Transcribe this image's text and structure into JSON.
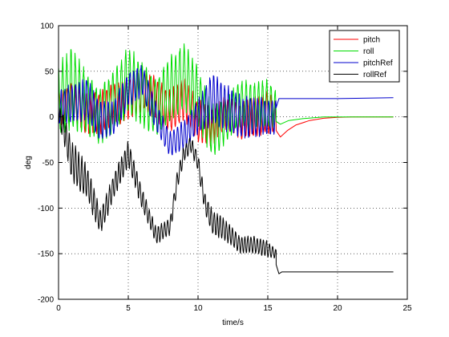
{
  "chart_data": {
    "type": "line",
    "xlabel": "time/s",
    "ylabel": "deg",
    "xlim": [
      0,
      25
    ],
    "ylim": [
      -200,
      100
    ],
    "xticks": [
      0,
      5,
      10,
      15,
      20,
      25
    ],
    "yticks": [
      100,
      50,
      0,
      -50,
      -100,
      -150,
      -200
    ],
    "grid": true,
    "legend_position": "top-right",
    "series": [
      {
        "name": "pitch",
        "color": "#ff0000",
        "oscillating": {
          "t_end": 15.6,
          "center": [
            [
              0,
              10
            ],
            [
              1,
              15
            ],
            [
              2,
              5
            ],
            [
              3,
              5
            ],
            [
              4,
              15
            ],
            [
              5,
              20
            ],
            [
              6,
              30
            ],
            [
              7,
              20
            ],
            [
              8,
              5
            ],
            [
              9,
              20
            ],
            [
              10,
              -5
            ],
            [
              11,
              -10
            ],
            [
              12,
              5
            ],
            [
              13,
              -5
            ],
            [
              14,
              0
            ],
            [
              15,
              5
            ],
            [
              15.6,
              0
            ]
          ],
          "amplitude": [
            [
              0,
              20
            ],
            [
              2,
              25
            ],
            [
              5,
              25
            ],
            [
              8,
              25
            ],
            [
              10,
              25
            ],
            [
              12,
              20
            ],
            [
              15,
              25
            ],
            [
              15.6,
              20
            ]
          ],
          "period": 0.28
        },
        "settle": [
          [
            15.6,
            -15
          ],
          [
            15.9,
            -22
          ],
          [
            16.4,
            -15
          ],
          [
            17,
            -9
          ],
          [
            18,
            -4
          ],
          [
            19,
            -1.5
          ],
          [
            20,
            -0.5
          ],
          [
            21,
            0
          ],
          [
            24,
            0
          ]
        ]
      },
      {
        "name": "roll",
        "color": "#00dd00",
        "oscillating": {
          "t_end": 15.6,
          "center": [
            [
              0,
              20
            ],
            [
              1,
              30
            ],
            [
              2,
              15
            ],
            [
              3,
              0
            ],
            [
              4,
              20
            ],
            [
              5,
              40
            ],
            [
              6,
              25
            ],
            [
              7,
              10
            ],
            [
              8,
              30
            ],
            [
              9,
              45
            ],
            [
              10,
              20
            ],
            [
              11,
              -15
            ],
            [
              12,
              -5
            ],
            [
              13,
              15
            ],
            [
              14,
              10
            ],
            [
              15,
              15
            ],
            [
              15.6,
              5
            ]
          ],
          "amplitude": [
            [
              0,
              40
            ],
            [
              1,
              50
            ],
            [
              2,
              35
            ],
            [
              4,
              35
            ],
            [
              5,
              40
            ],
            [
              7,
              35
            ],
            [
              9,
              40
            ],
            [
              10,
              35
            ],
            [
              12,
              25
            ],
            [
              14,
              30
            ],
            [
              15.6,
              25
            ]
          ],
          "period": 0.3
        },
        "settle": [
          [
            15.6,
            -5
          ],
          [
            15.9,
            -8
          ],
          [
            16.5,
            -4
          ],
          [
            17.5,
            -2
          ],
          [
            19,
            0
          ],
          [
            20,
            0
          ],
          [
            24,
            0
          ]
        ]
      },
      {
        "name": "pitchRef",
        "color": "#0000cc",
        "oscillating": {
          "t_end": 15.6,
          "center": [
            [
              0,
              10
            ],
            [
              1,
              15
            ],
            [
              2,
              20
            ],
            [
              3,
              -5
            ],
            [
              4,
              0
            ],
            [
              5,
              30
            ],
            [
              6,
              40
            ],
            [
              7,
              0
            ],
            [
              8,
              -30
            ],
            [
              9,
              -20
            ],
            [
              10,
              0
            ],
            [
              11,
              20
            ],
            [
              12,
              10
            ],
            [
              13,
              0
            ],
            [
              14,
              0
            ],
            [
              15,
              0
            ],
            [
              15.6,
              0
            ]
          ],
          "amplitude": [
            [
              0,
              20
            ],
            [
              2,
              25
            ],
            [
              5,
              20
            ],
            [
              8,
              15
            ],
            [
              10,
              20
            ],
            [
              11,
              30
            ],
            [
              13,
              25
            ],
            [
              15.6,
              20
            ]
          ],
          "period": 0.26
        },
        "settle": [
          [
            15.6,
            10
          ],
          [
            15.8,
            20
          ],
          [
            16,
            20
          ],
          [
            20,
            20
          ],
          [
            24,
            21
          ]
        ]
      },
      {
        "name": "rollRef",
        "color": "#000000",
        "oscillating": {
          "t_end": 15.6,
          "center": [
            [
              0,
              5
            ],
            [
              0.5,
              -20
            ],
            [
              1,
              -50
            ],
            [
              2,
              -70
            ],
            [
              3,
              -115
            ],
            [
              4,
              -75
            ],
            [
              5,
              -40
            ],
            [
              6,
              -90
            ],
            [
              7,
              -130
            ],
            [
              8,
              -120
            ],
            [
              8.5,
              -70
            ],
            [
              9,
              -40
            ],
            [
              9.5,
              -30
            ],
            [
              10,
              -50
            ],
            [
              10.5,
              -95
            ],
            [
              11,
              -115
            ],
            [
              12,
              -125
            ],
            [
              13,
              -140
            ],
            [
              14,
              -140
            ],
            [
              15,
              -145
            ],
            [
              15.6,
              -150
            ]
          ],
          "amplitude": [
            [
              0,
              10
            ],
            [
              1,
              25
            ],
            [
              3,
              15
            ],
            [
              5,
              15
            ],
            [
              7,
              10
            ],
            [
              10,
              10
            ],
            [
              11,
              15
            ],
            [
              13,
              10
            ],
            [
              15,
              10
            ],
            [
              15.6,
              5
            ]
          ],
          "period": 0.22
        },
        "settle": [
          [
            15.6,
            -162
          ],
          [
            15.8,
            -172
          ],
          [
            16,
            -170
          ],
          [
            20,
            -170
          ],
          [
            24,
            -170
          ]
        ]
      }
    ]
  }
}
